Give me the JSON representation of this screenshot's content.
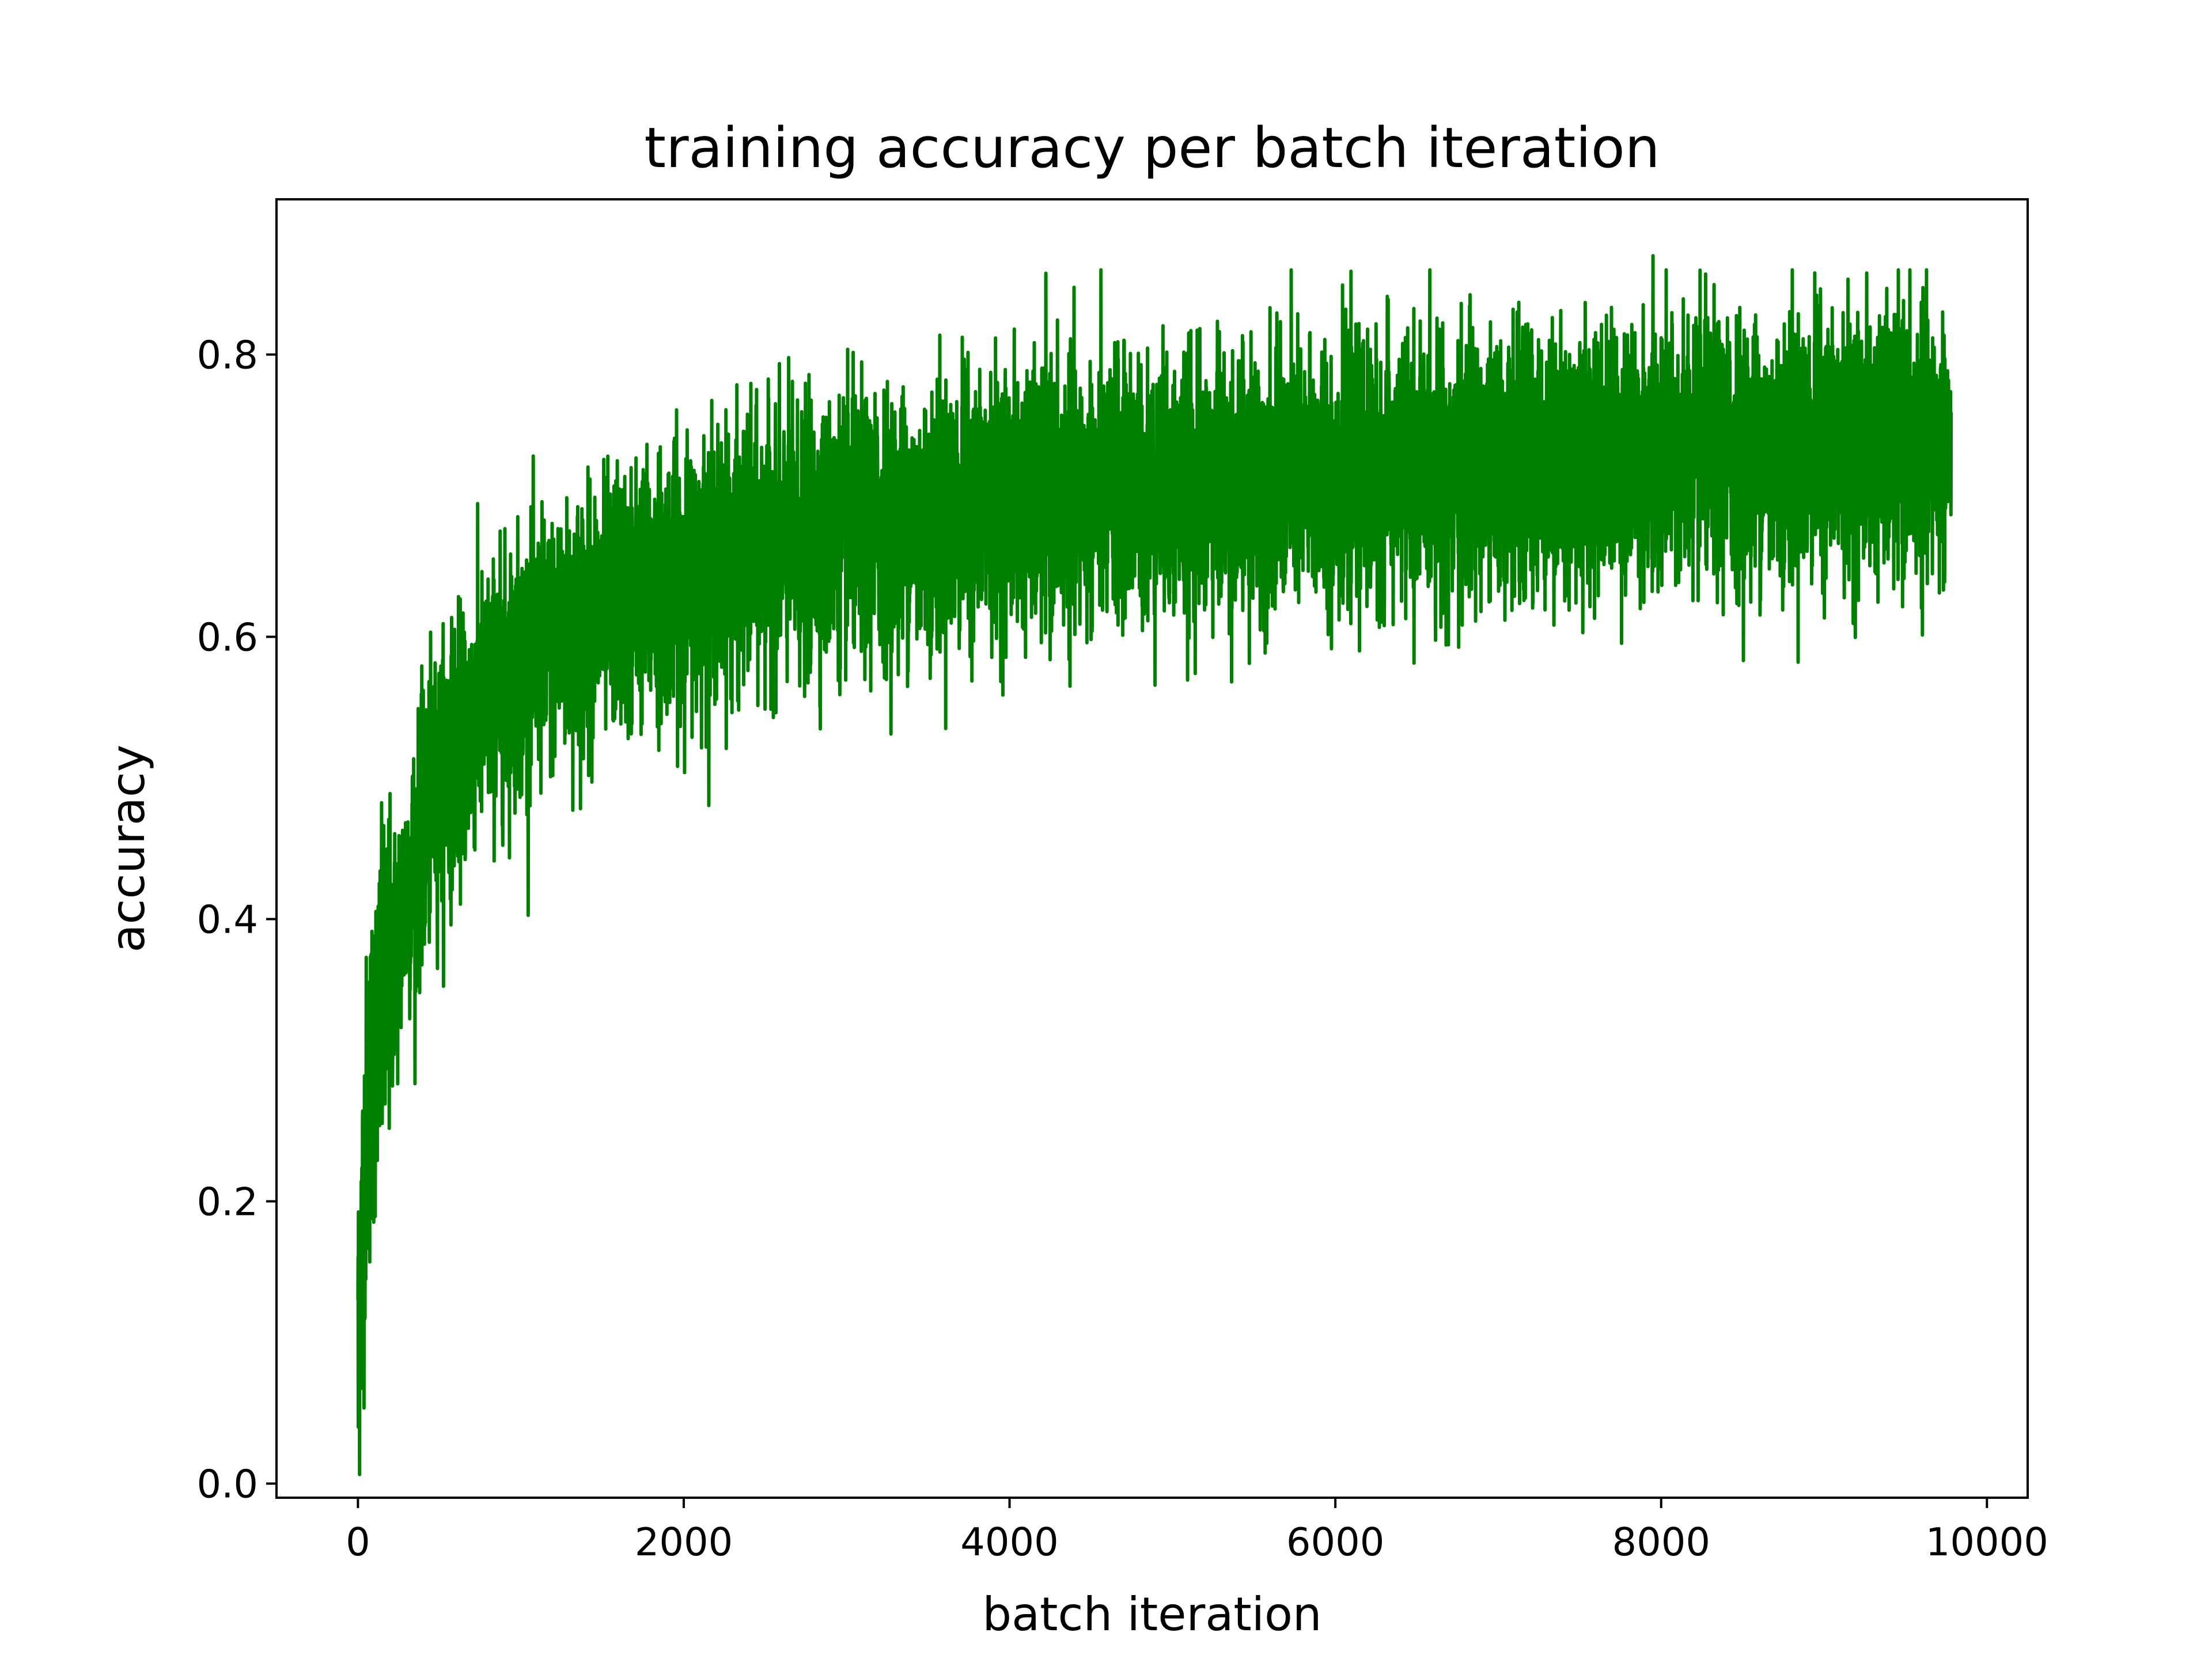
{
  "chart_data": {
    "type": "line",
    "title": "training accuracy per batch iteration",
    "xlabel": "batch iteration",
    "ylabel": "accuracy",
    "xlim": [
      -500,
      10250
    ],
    "ylim": [
      -0.01,
      0.91
    ],
    "xticks": [
      0,
      2000,
      4000,
      6000,
      8000,
      10000
    ],
    "xtick_labels": [
      "0",
      "2000",
      "4000",
      "6000",
      "8000",
      "10000"
    ],
    "yticks": [
      0.0,
      0.2,
      0.4,
      0.6,
      0.8
    ],
    "ytick_labels": [
      "0.0",
      "0.2",
      "0.4",
      "0.6",
      "0.8"
    ],
    "grid": false,
    "legend": "none",
    "series": [
      {
        "color": "#008000",
        "x_range": [
          0,
          9780
        ],
        "num_points": 9781,
        "trend": {
          "x": [
            0,
            50,
            100,
            200,
            300,
            500,
            750,
            1000,
            1500,
            2000,
            2500,
            3000,
            4000,
            5000,
            6000,
            7000,
            8000,
            9000,
            9780
          ],
          "y": [
            0.1,
            0.25,
            0.31,
            0.36,
            0.42,
            0.5,
            0.55,
            0.58,
            0.62,
            0.645,
            0.66,
            0.675,
            0.695,
            0.705,
            0.715,
            0.72,
            0.73,
            0.735,
            0.735
          ]
        },
        "observed_min": {
          "x": 0,
          "y": 0.04
        },
        "observed_max": {
          "x": 7950,
          "y": 0.87
        }
      }
    ]
  }
}
